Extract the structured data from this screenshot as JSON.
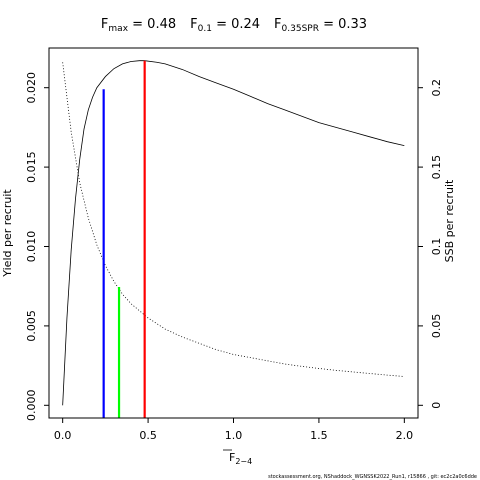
{
  "chart_data": {
    "type": "line",
    "title": {
      "parts": [
        {
          "base": "F",
          "sub": "max",
          "value": " = 0.48"
        },
        {
          "base": "F",
          "sub": "0.1",
          "value": " = 0.24"
        },
        {
          "base": "F",
          "sub": "0.35SPR",
          "value": " = 0.33"
        }
      ]
    },
    "xlabel": {
      "base": "F",
      "sub": "2−4"
    },
    "ylabel_left": "Yield per recruit",
    "ylabel_right": "SSB per recruit",
    "xlim": [
      -0.08,
      2.08
    ],
    "ylim_left": [
      -0.0008,
      0.0225
    ],
    "ylim_right": [
      -0.008,
      0.225
    ],
    "x_ticks": [
      {
        "value": 0.0,
        "label": "0.0"
      },
      {
        "value": 0.5,
        "label": "0.5"
      },
      {
        "value": 1.0,
        "label": "1.0"
      },
      {
        "value": 1.5,
        "label": "1.5"
      },
      {
        "value": 2.0,
        "label": "2.0"
      }
    ],
    "y_left_ticks": [
      {
        "value": 0.0,
        "label": "0.000"
      },
      {
        "value": 0.005,
        "label": "0.005"
      },
      {
        "value": 0.01,
        "label": "0.010"
      },
      {
        "value": 0.015,
        "label": "0.015"
      },
      {
        "value": 0.02,
        "label": "0.020"
      }
    ],
    "y_right_ticks": [
      {
        "value": 0.0,
        "label": "0"
      },
      {
        "value": 0.05,
        "label": "0.05"
      },
      {
        "value": 0.1,
        "label": "0.1"
      },
      {
        "value": 0.15,
        "label": "0.15"
      },
      {
        "value": 0.2,
        "label": "0.2"
      }
    ],
    "series": [
      {
        "axis": "left",
        "style": "solid",
        "color": "#000000",
        "x": [
          0,
          0.025,
          0.05,
          0.075,
          0.1,
          0.125,
          0.15,
          0.175,
          0.2,
          0.25,
          0.3,
          0.35,
          0.4,
          0.45,
          0.48,
          0.55,
          0.6,
          0.7,
          0.8,
          0.9,
          1.0,
          1.1,
          1.2,
          1.3,
          1.4,
          1.5,
          1.6,
          1.7,
          1.8,
          1.9,
          2.0
        ],
        "y": [
          0,
          0.0055,
          0.0098,
          0.013,
          0.0155,
          0.0174,
          0.0186,
          0.0194,
          0.02,
          0.0207,
          0.0212,
          0.0215,
          0.02165,
          0.0217,
          0.0217,
          0.0216,
          0.0215,
          0.02115,
          0.0207,
          0.0203,
          0.0199,
          0.01945,
          0.019,
          0.0186,
          0.0182,
          0.0178,
          0.0175,
          0.0172,
          0.0169,
          0.0166,
          0.01635
        ]
      },
      {
        "axis": "right",
        "style": "dotted",
        "color": "#000000",
        "x": [
          0,
          0.05,
          0.1,
          0.15,
          0.2,
          0.25,
          0.3,
          0.35,
          0.4,
          0.5,
          0.6,
          0.7,
          0.8,
          0.9,
          1.0,
          1.1,
          1.2,
          1.3,
          1.4,
          1.5,
          1.6,
          1.7,
          1.8,
          1.9,
          2.0
        ],
        "y": [
          0.216,
          0.172,
          0.14,
          0.118,
          0.101,
          0.088,
          0.078,
          0.07,
          0.064,
          0.055,
          0.048,
          0.043,
          0.039,
          0.035,
          0.032,
          0.03,
          0.028,
          0.026,
          0.0245,
          0.0232,
          0.022,
          0.021,
          0.02,
          0.019,
          0.0181
        ]
      }
    ],
    "reference_lines": [
      {
        "name": "F0.1",
        "x": 0.24,
        "y_top": 0.0199,
        "axis": "left",
        "color": "#0000ff"
      },
      {
        "name": "F0.35SPR",
        "x": 0.33,
        "y_top": 0.0745,
        "axis": "right",
        "color": "#00ff00"
      },
      {
        "name": "Fmax",
        "x": 0.48,
        "y_top": 0.0217,
        "axis": "left",
        "color": "#ff0000"
      }
    ]
  },
  "footer": "stockassessment.org, NShaddock_WGNSSK2022_Run1, r15866 ,  git: ec2c2a0c6dde"
}
